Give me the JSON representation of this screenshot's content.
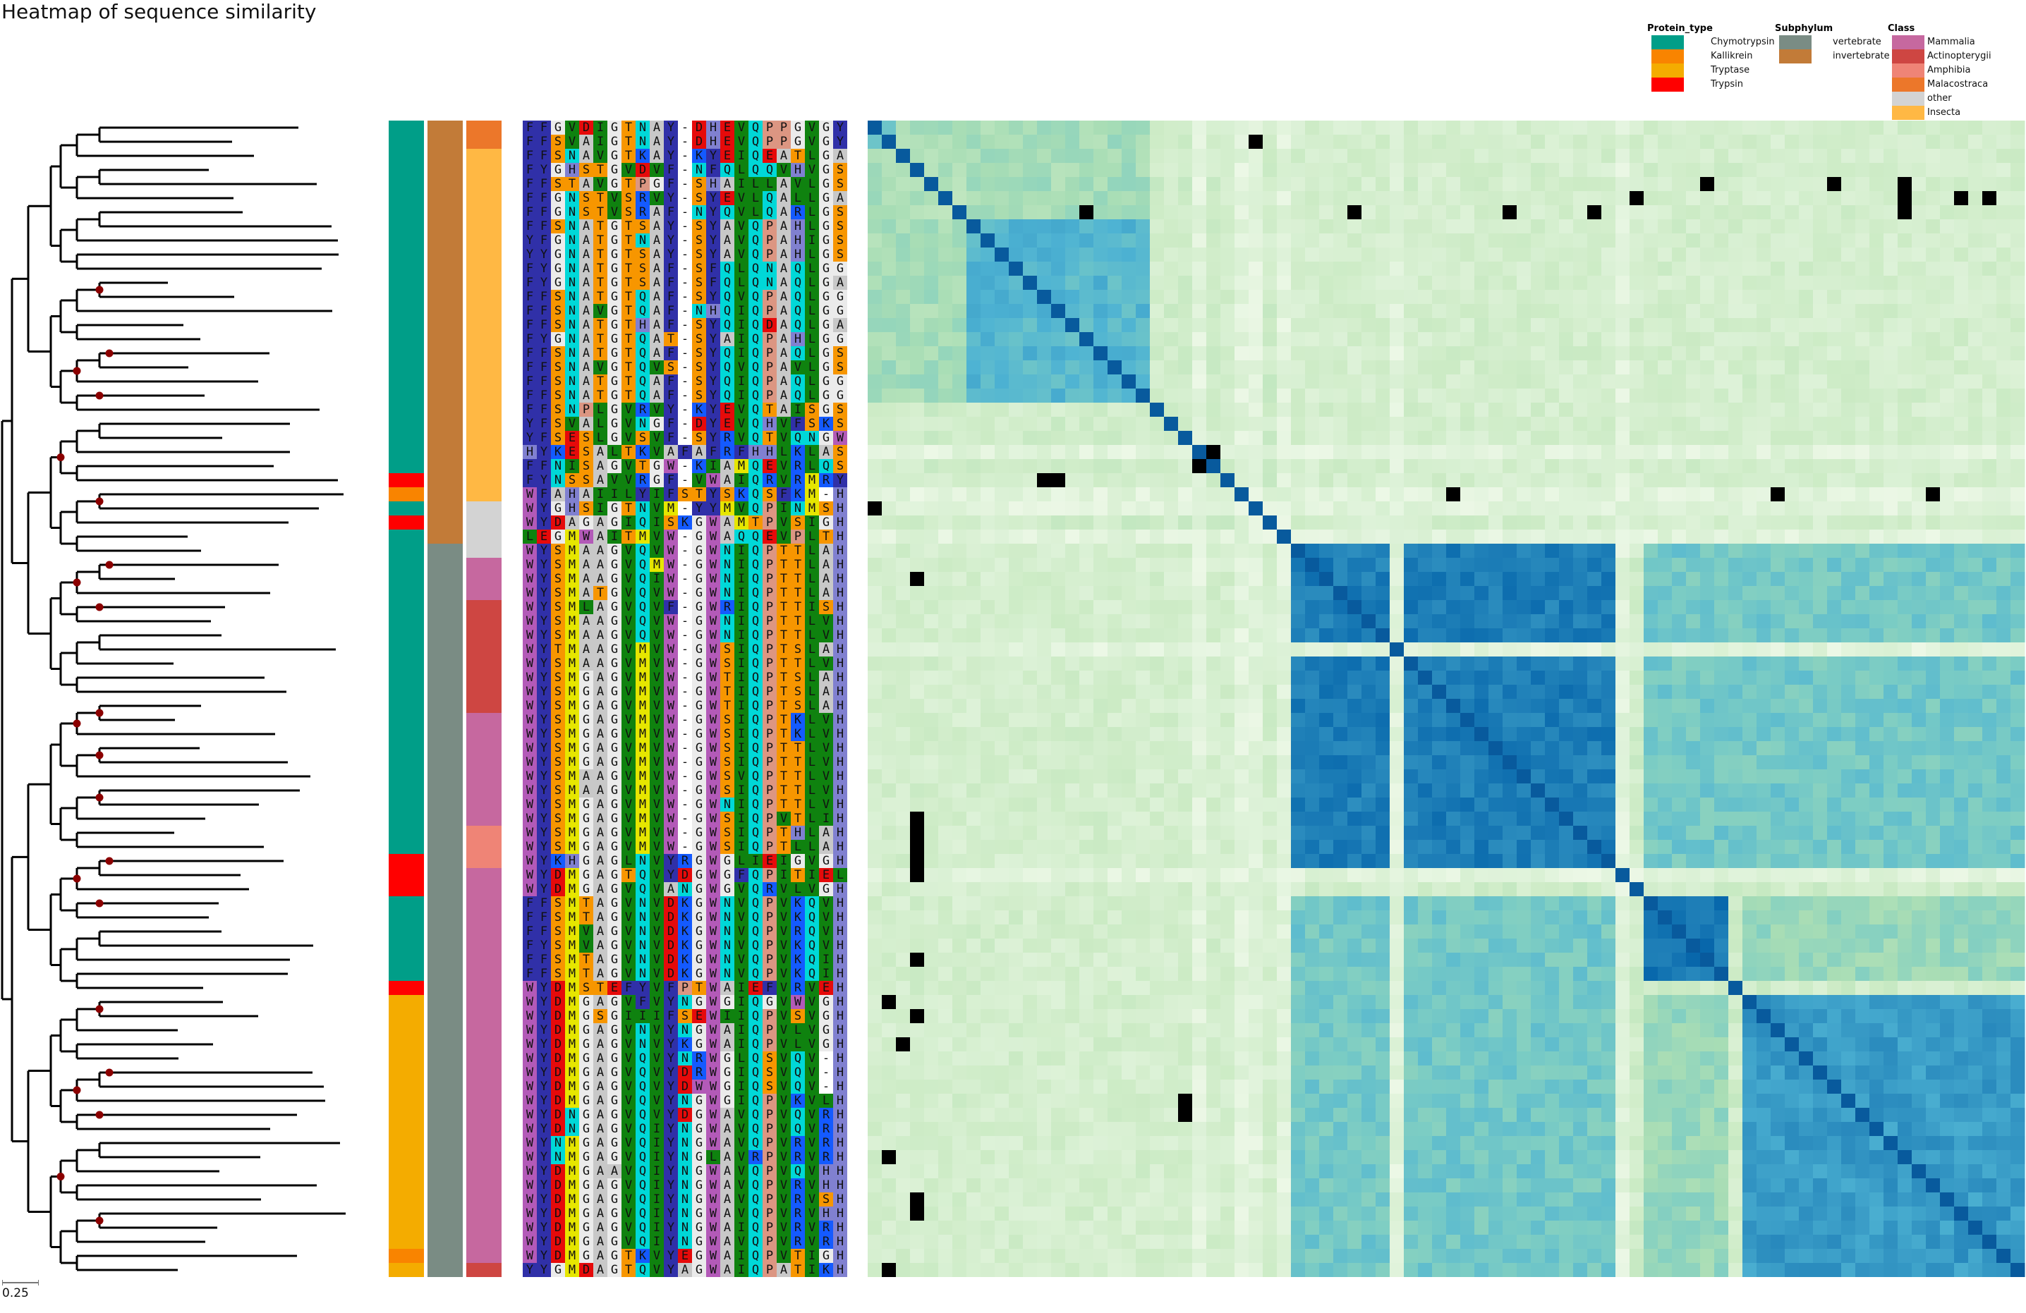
{
  "chart_data": {
    "type": "heatmap",
    "title": "Heatmap of sequence similarity",
    "n_sequences": 82,
    "scale_bar_label": "0.25",
    "legend": {
      "Protein_type": [
        {
          "label": "Chymotrypsin",
          "color": "#009E88"
        },
        {
          "label": "Kallikrein",
          "color": "#F98400"
        },
        {
          "label": "Tryptase",
          "color": "#F4AC00"
        },
        {
          "label": "Trypsin",
          "color": "#FF0000"
        }
      ],
      "Subphylum": [
        {
          "label": "vertebrate",
          "color": "#7A8C84"
        },
        {
          "label": "invertebrate",
          "color": "#C27B38"
        }
      ],
      "Class": [
        {
          "label": "Mammalia",
          "color": "#C6689F"
        },
        {
          "label": "Actinopterygii",
          "color": "#CE4642"
        },
        {
          "label": "Amphibia",
          "color": "#EF8476"
        },
        {
          "label": "Malacostraca",
          "color": "#EC772A"
        },
        {
          "label": "other",
          "color": "#D3D3D3"
        },
        {
          "label": "Insecta",
          "color": "#FFB844"
        }
      ]
    },
    "annotations": {
      "protein_type": [
        {
          "from": 0,
          "to": 24,
          "label": "Chymotrypsin"
        },
        {
          "from": 25,
          "to": 25,
          "label": "Trypsin"
        },
        {
          "from": 26,
          "to": 26,
          "label": "Kallikrein"
        },
        {
          "from": 27,
          "to": 27,
          "label": "Chymotrypsin"
        },
        {
          "from": 28,
          "to": 28,
          "label": "Trypsin"
        },
        {
          "from": 29,
          "to": 51,
          "label": "Chymotrypsin"
        },
        {
          "from": 52,
          "to": 54,
          "label": "Trypsin"
        },
        {
          "from": 55,
          "to": 60,
          "label": "Chymotrypsin"
        },
        {
          "from": 61,
          "to": 61,
          "label": "Trypsin"
        },
        {
          "from": 62,
          "to": 79,
          "label": "Tryptase"
        },
        {
          "from": 80,
          "to": 80,
          "label": "Kallikrein"
        },
        {
          "from": 81,
          "to": 81,
          "label": "Tryptase"
        }
      ],
      "subphylum": [
        {
          "from": 0,
          "to": 29,
          "label": "invertebrate"
        },
        {
          "from": 30,
          "to": 81,
          "label": "vertebrate"
        }
      ],
      "class": [
        {
          "from": 0,
          "to": 1,
          "label": "Malacostraca"
        },
        {
          "from": 2,
          "to": 26,
          "label": "Insecta"
        },
        {
          "from": 27,
          "to": 30,
          "label": "other"
        },
        {
          "from": 31,
          "to": 33,
          "label": "Mammalia"
        },
        {
          "from": 34,
          "to": 41,
          "label": "Actinopterygii"
        },
        {
          "from": 42,
          "to": 49,
          "label": "Mammalia"
        },
        {
          "from": 50,
          "to": 52,
          "label": "Amphibia"
        },
        {
          "from": 53,
          "to": 80,
          "label": "Mammalia"
        },
        {
          "from": 81,
          "to": 81,
          "label": "Actinopterygii"
        }
      ]
    },
    "alignment": [
      "FFGVDIGTNAY-DHEVQPPGVGY",
      "FFSVAIGTNAY-DHEVQPPGVGY",
      "FFSNAVGTKAY-KYEIQEATLGA",
      "FYGHSTGVDVF-NFQLQQVHVGS",
      "FFSTAVGTPGF-SHAILLAVLGS",
      "FFGNSTVSRVY-SYEVLQALLGA",
      "FFGNSTVSRAF-NYQVLQARLGS",
      "FFSNATGTSAY-SYAVQPAHLGS",
      "YFGNATGTNAY-SYAVQPAHIGS",
      "YYGNATGTSAY-SYAVQPAHLGS",
      "FYGNATGTSAF-SFQLQNAQLGG",
      "FYGNATGTSAF-SFQLQNAQLGA",
      "FFSNATGTQAF-SYQVQPAQLGG",
      "FFSNAVGTQAF-NHQIQPAQLGG",
      "FFSNATGTHAF-SYQIQDAQLGA",
      "FYGNATGTQAT-SYAIQPAHLGG",
      "FFSNATGTQAF-SYQIQPAQLGS",
      "FFSNAVGTQVS-SYQVQPAVLGS",
      "FFSNATGTQAF-SYQIQPAQLGG",
      "FFSNATGTQAF-SYQIQPAQLGG",
      "FFSNPLGVRVY-KYEVQTAISGS",
      "YFSVALGVNGF-DYEVQHVFSKS",
      "YFSESLGVSVF-SYRVQTVQNGW",
      "HYKESALTKVAFAFRFHHLKLAS",
      "FFNISAGVTGW-KIAMQEVRLQS",
      "FYNSSAVVRGF-VWAIQRVRMRY",
      "WFAHAIILYIFSTYSKQSFKM-H",
      "WYGHSIGTNVM-YYMVQPINMSH",
      "WYDAGAGIQISKGWAMTPVSIGH",
      "LEGMWAITMVW-GWAQQEVPLTH",
      "WYSMAAGVQVW-GWNIQPTTLAH",
      "WYSMAAGVQMW-GWNIQPTTLAH",
      "WYSMAAGVQIW-GWNIQPTTLAH",
      "WYSMATGVQVW-GWNIQPTTLAH",
      "WYSMLAGVQVF-GWRIQPTTISH",
      "WYSMAAGVQVW-GWNIQPTTLVH",
      "WYSMAAGVQVW-GWNIQPTTLVH",
      "WYTMAAGVMVW-GWSIQPTSLAH",
      "WYSMAAGVMVW-GWSIQPTTLVH",
      "WYSMGAGVMVW-GWTIQPTSLAH",
      "WYSMGAGVMVW-GWTIQPTSLAH",
      "WYSMGAGVMVW-GWTIQPTSLAH",
      "WYSMGAGVMVW-GWSIQPTKLVH",
      "WYSMGAGVMVW-GWSIQPTKLVH",
      "WYSMGAGVMVW-GWSIQPTTLVH",
      "WYSMGAGVMVW-GWSIQPTTLVH",
      "WYSMAAGVMVW-GWSVQPTTLVH",
      "WYSMAAGVMVW-GWSIQPTTLVH",
      "WYSMGAGVMVW-GWNIQPTTLVH",
      "WYSMGAGVMVW-GWSIQPVTLIH",
      "WYSMGAGVMVW-GWSIQPTHLAH",
      "WYSMGAGVMVW-GWSIQPTLLAH",
      "WYKHGAGLNVYRGWGLIEIGVGH",
      "WYDMGAGTQVYDGWGFQPITIEL",
      "WYDMGAGVQVANGWGVQRVLVGH",
      "FFSMTAGVNVDKGWNVQPVKQVH",
      "FFSMTAGVNVDKGWNVQPVKQVH",
      "FFSMVAGVNVDKGWNVQPVRQVH",
      "FYSMVAGVNVDKGWNVQPVKQVH",
      "FFSMTAGVNVDKGWNVQPVKQIH",
      "FFSMTAGVNVDKGWNVQPVKQIH",
      "WYDMSTEFYVFPTWAIEFVRVEH",
      "WYDMGAGVFVYNGWGIQGVWVGH",
      "WYDMGSGIIIFSEWIIQPVSVGH",
      "WYDMGAGVNVYNGWAIQPVLVGH",
      "WYDMGAGVNVYKGWAIQPVLVGH",
      "WYDMGAGVQVYNRWGLQSVQV-H",
      "WYDMGAGVQVYDRWGIQSVQV-H",
      "WYDMGAGVQVYDWWGIQSVQV-H",
      "WYDMGAGVQVYNGWGIQPVKVLH",
      "WYDNGAGVQVYDGWAVQPVQVRH",
      "WYDNGAGVQIYNGWAVQPVQVRH",
      "WYNMGAGVQIYNGWAVQPVRVRH",
      "WYNMGAGVQIYNGLAVRPVRVRH",
      "WYDMGAAVQIYNGWAVQPVQVHH",
      "WYDMGAGVQIYNGWAVQPVRVHH",
      "WYDMGAGVQIYNGWAVQPVRVSH",
      "WYDMGAGVQIYNGWAVQPVRVHH",
      "WYDMGAGVQIYNGWAIQPVRVRH",
      "WYDMGAGVQIYNGWAVQPVRVRH",
      "WYDMGAGTKVYEGWAIQPVTIGH",
      "YYGMDAGTQVYAGWAIQPATIKH"
    ],
    "residue_colors": {
      "F": "#3030a8",
      "Y": "#3030a8",
      "W": "#b35ab8",
      "H": "#8080d0",
      "G": "#ebebeb",
      "A": "#c8c8c8",
      "S": "#f79600",
      "T": "#f79600",
      "N": "#00d8d8",
      "Q": "#00d8d8",
      "D": "#e60a0a",
      "E": "#e60a0a",
      "K": "#145aff",
      "R": "#145aff",
      "V": "#0f820f",
      "I": "#0f820f",
      "L": "#0f820f",
      "M": "#e6e600",
      "P": "#dc9682",
      "C": "#e6e600",
      "-": "#ffffff"
    },
    "heatmap": {
      "colormap": [
        "#f7fcf0",
        "#e0f3db",
        "#ccebc5",
        "#a8ddb5",
        "#7bccc4",
        "#4eb3d3",
        "#2b8cbe",
        "#0868ac",
        "#084081"
      ],
      "missing_color": "#000000",
      "clusters": [
        {
          "from": 0,
          "to": 1,
          "level": 0.55
        },
        {
          "from": 2,
          "to": 6,
          "level": 0.35
        },
        {
          "from": 7,
          "to": 19,
          "level": 0.6
        },
        {
          "from": 30,
          "to": 52,
          "level": 0.8
        },
        {
          "from": 55,
          "to": 60,
          "level": 0.82
        },
        {
          "from": 62,
          "to": 81,
          "level": 0.7
        }
      ],
      "cross_blocks": [
        {
          "rows": [
            30,
            52
          ],
          "cols": [
            55,
            81
          ],
          "level": 0.52
        },
        {
          "rows": [
            55,
            60
          ],
          "cols": [
            62,
            81
          ],
          "level": 0.42
        },
        {
          "rows": [
            0,
            29
          ],
          "cols": [
            30,
            81
          ],
          "level": 0.2
        },
        {
          "rows": [
            2,
            19
          ],
          "cols": [
            0,
            19
          ],
          "level": 0.38
        }
      ],
      "light_rows": [
        23,
        26,
        27,
        29,
        37,
        53
      ],
      "missing_cells": [
        [
          1,
          27
        ],
        [
          6,
          73
        ],
        [
          6,
          87
        ],
        [
          6,
          91
        ],
        [
          5,
          54
        ],
        [
          6,
          34
        ],
        [
          6,
          15
        ],
        [
          6,
          45
        ],
        [
          6,
          51
        ],
        [
          4,
          59
        ],
        [
          4,
          68
        ],
        [
          4,
          73
        ],
        [
          5,
          77
        ],
        [
          5,
          79
        ],
        [
          5,
          73
        ],
        [
          26,
          41
        ],
        [
          26,
          64
        ],
        [
          26,
          75
        ],
        [
          25,
          12
        ],
        [
          25,
          13
        ],
        [
          27,
          0
        ],
        [
          23,
          24
        ],
        [
          24,
          23
        ],
        [
          32,
          3
        ],
        [
          49,
          3
        ],
        [
          50,
          3
        ],
        [
          51,
          3
        ],
        [
          52,
          3
        ],
        [
          53,
          3
        ],
        [
          59,
          3
        ],
        [
          63,
          3
        ],
        [
          65,
          2
        ],
        [
          62,
          1
        ],
        [
          69,
          22
        ],
        [
          70,
          22
        ],
        [
          73,
          1
        ],
        [
          76,
          3
        ],
        [
          77,
          3
        ],
        [
          81,
          1
        ],
        [
          86,
          1
        ],
        [
          88,
          2
        ]
      ]
    }
  }
}
